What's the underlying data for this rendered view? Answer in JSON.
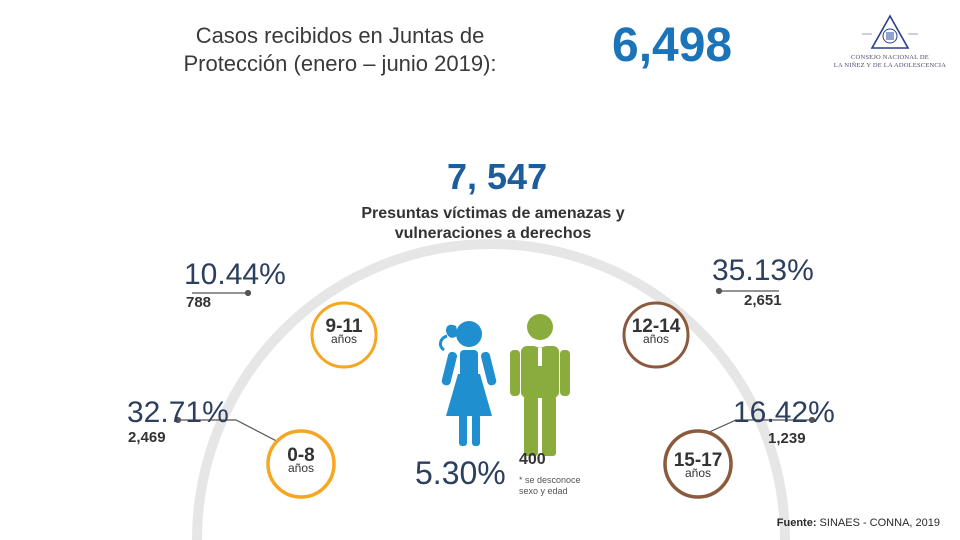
{
  "header": {
    "title_line1": "Casos recibidos en Juntas de",
    "title_line2": "Protección (enero – junio 2019):",
    "total": "6,498"
  },
  "logo": {
    "line1": "CONSEJO NACIONAL DE",
    "line2": "LA NIÑEZ Y DE LA ADOLESCENCIA"
  },
  "victims": {
    "total": "7, 547",
    "label_line1": "Presuntas víctimas de amenazas y",
    "label_line2": "vulneraciones a derechos"
  },
  "age_groups": [
    {
      "range": "0-8",
      "unit": "años",
      "percent": "32.71%",
      "count": "2,469",
      "color": "#f5a623"
    },
    {
      "range": "9-11",
      "unit": "años",
      "percent": "10.44%",
      "count": "788",
      "color": "#ffffff"
    },
    {
      "range": "12-14",
      "unit": "años",
      "percent": "35.13%",
      "count": "2,651",
      "color": "#ffffff"
    },
    {
      "range": "15-17",
      "unit": "años",
      "percent": "16.42%",
      "count": "1,239",
      "color": "#8b5a3c"
    }
  ],
  "unknown": {
    "percent": "5.30%",
    "count": "400",
    "note_line1": "* se desconoce",
    "note_line2": "sexo y edad"
  },
  "source": {
    "label": "Fuente:",
    "text": " SINAES - CONNA, 2019"
  },
  "colors": {
    "girl": "#1f8fd0",
    "boy": "#8aac3c",
    "arc": "#e6e6e6",
    "leader": "#555555"
  }
}
